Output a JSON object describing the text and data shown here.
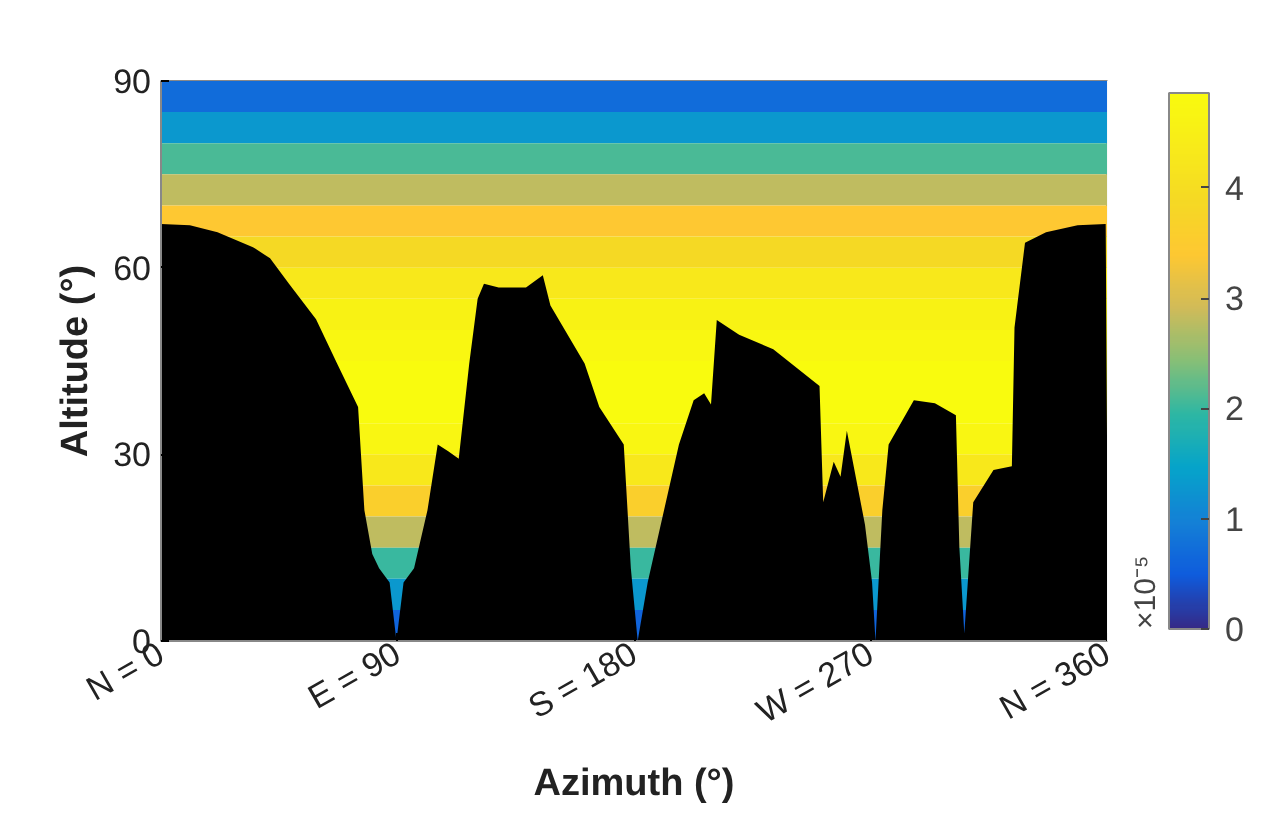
{
  "chart_data": {
    "type": "area",
    "xlabel": "Azimuth (°)",
    "ylabel": "Altitude (°)",
    "clabel": "×10⁻⁵",
    "clim": [
      0,
      4.86
    ],
    "cticks": [
      0,
      1,
      2,
      3,
      4
    ],
    "xlim": [
      0,
      360
    ],
    "ylim": [
      0,
      90
    ],
    "xticks": [
      {
        "value": 0,
        "label": "N = 0"
      },
      {
        "value": 90,
        "label": "E = 90"
      },
      {
        "value": 180,
        "label": "S = 180"
      },
      {
        "value": 270,
        "label": "W = 270"
      },
      {
        "value": 360,
        "label": "N = 360"
      }
    ],
    "yticks": [
      0,
      30,
      60,
      90
    ],
    "grid": false,
    "bands": [
      {
        "axis": "y",
        "from": 85,
        "to": 90,
        "color": "#116cda"
      },
      {
        "axis": "y",
        "from": 80,
        "to": 85,
        "color": "#0b98ce"
      },
      {
        "axis": "y",
        "from": 75,
        "to": 80,
        "color": "#4aba96"
      },
      {
        "axis": "y",
        "from": 70,
        "to": 75,
        "color": "#bfbc60"
      },
      {
        "axis": "y",
        "from": 65,
        "to": 70,
        "color": "#fec832"
      },
      {
        "axis": "y",
        "from": 60,
        "to": 65,
        "color": "#f5d924"
      },
      {
        "axis": "y",
        "from": 55,
        "to": 60,
        "color": "#f8e81b"
      },
      {
        "axis": "y",
        "from": 50,
        "to": 55,
        "color": "#f8f214"
      },
      {
        "axis": "y",
        "from": 45,
        "to": 50,
        "color": "#f9f711"
      },
      {
        "axis": "y",
        "from": 40,
        "to": 45,
        "color": "#f9fb0e"
      },
      {
        "axis": "y",
        "from": 35,
        "to": 40,
        "color": "#f9fb0e"
      },
      {
        "axis": "y",
        "from": 30,
        "to": 35,
        "color": "#f9f612"
      },
      {
        "axis": "y",
        "from": 25,
        "to": 30,
        "color": "#f8e81b"
      },
      {
        "axis": "y",
        "from": 20,
        "to": 25,
        "color": "#facf2c"
      },
      {
        "axis": "y",
        "from": 15,
        "to": 20,
        "color": "#bfbc60"
      },
      {
        "axis": "y",
        "from": 10,
        "to": 15,
        "color": "#39b89f"
      },
      {
        "axis": "y",
        "from": 5,
        "to": 10,
        "color": "#0b98ce"
      },
      {
        "axis": "y",
        "from": 0,
        "to": 5,
        "color": "#1064db"
      }
    ],
    "series": [
      {
        "color": "#000000",
        "x": [
          0,
          11,
          21.5,
          35,
          41.5,
          48.7,
          59,
          67,
          75,
          77.4,
          80.4,
          83,
          87,
          89.6,
          92.3,
          96.3,
          101.4,
          105.3,
          109.3,
          113.3,
          117.3,
          120.5,
          122.9,
          128.5,
          138.9,
          145.3,
          148.2,
          161.2,
          166.8,
          176.1,
          178.8,
          181.4,
          185.2,
          197.1,
          202.7,
          206.7,
          209.3,
          211.5,
          220,
          233,
          250.6,
          252,
          256,
          258.6,
          261,
          267.9,
          270.6,
          271.9,
          274.5,
          276.9,
          286.5,
          294.5,
          302.5,
          303.8,
          305.7,
          309.1,
          316.8,
          323.8,
          324.8,
          328.8,
          336.8,
          348.8,
          359.5,
          360
        ],
        "values": [
          67,
          66.8,
          65.7,
          63.3,
          61.5,
          57.4,
          51.7,
          44.6,
          37.6,
          21,
          14,
          11.7,
          9.4,
          0,
          9.4,
          11.7,
          21,
          31.6,
          30.5,
          29.3,
          44.6,
          55,
          57.4,
          56.8,
          56.8,
          58.8,
          53.9,
          44.6,
          37.6,
          31.6,
          11.7,
          0,
          9.4,
          31.6,
          38.7,
          39.8,
          38,
          51.6,
          49.2,
          46.9,
          41,
          22.3,
          28.8,
          26.4,
          33.8,
          18.7,
          9.4,
          0,
          21,
          31.6,
          38.7,
          38.2,
          36.3,
          15.2,
          1.2,
          22.3,
          27.5,
          28.1,
          50.4,
          64,
          65.7,
          66.8,
          67,
          33
        ]
      }
    ]
  }
}
